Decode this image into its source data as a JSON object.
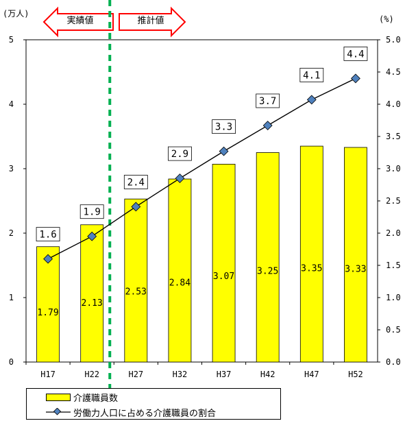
{
  "chart_data": {
    "type": "bar+line",
    "categories": [
      "H17",
      "H22",
      "H27",
      "H32",
      "H37",
      "H42",
      "H47",
      "H52"
    ],
    "series": [
      {
        "name": "介護職員数",
        "type": "bar",
        "axis": "left",
        "values": [
          1.79,
          2.13,
          2.53,
          2.84,
          3.07,
          3.25,
          3.35,
          3.33
        ]
      },
      {
        "name": "労働力人口に占める介護職員の割合",
        "type": "line",
        "axis": "right",
        "values": [
          1.6,
          1.95,
          2.41,
          2.85,
          3.27,
          3.67,
          4.07,
          4.4
        ]
      }
    ],
    "bar_labels": [
      "1.79",
      "2.13",
      "2.53",
      "2.84",
      "3.07",
      "3.25",
      "3.35",
      "3.33"
    ],
    "line_labels": [
      "1.6",
      "1.9",
      "2.4",
      "2.9",
      "3.3",
      "3.7",
      "4.1",
      "4.4"
    ],
    "y_left": {
      "unit": "(万人)",
      "min": 0,
      "max": 5,
      "ticks": [
        "0",
        "1",
        "2",
        "3",
        "4",
        "5"
      ]
    },
    "y_right": {
      "unit": "(%)",
      "min": 0,
      "max": 5,
      "ticks": [
        "0.0",
        "0.5",
        "1.0",
        "1.5",
        "2.0",
        "2.5",
        "3.0",
        "3.5",
        "4.0",
        "4.5",
        "5.0"
      ]
    },
    "annotations": {
      "actual_label": "実績値",
      "projected_label": "推計値",
      "divider_after_index": 1
    },
    "legend_placement": "bottom-left",
    "grid": false,
    "colors": {
      "bar": "#ffff00",
      "line": "#000000",
      "marker": "#4f81bd",
      "divider": "#00b050",
      "arrow": "#ff0000"
    }
  }
}
